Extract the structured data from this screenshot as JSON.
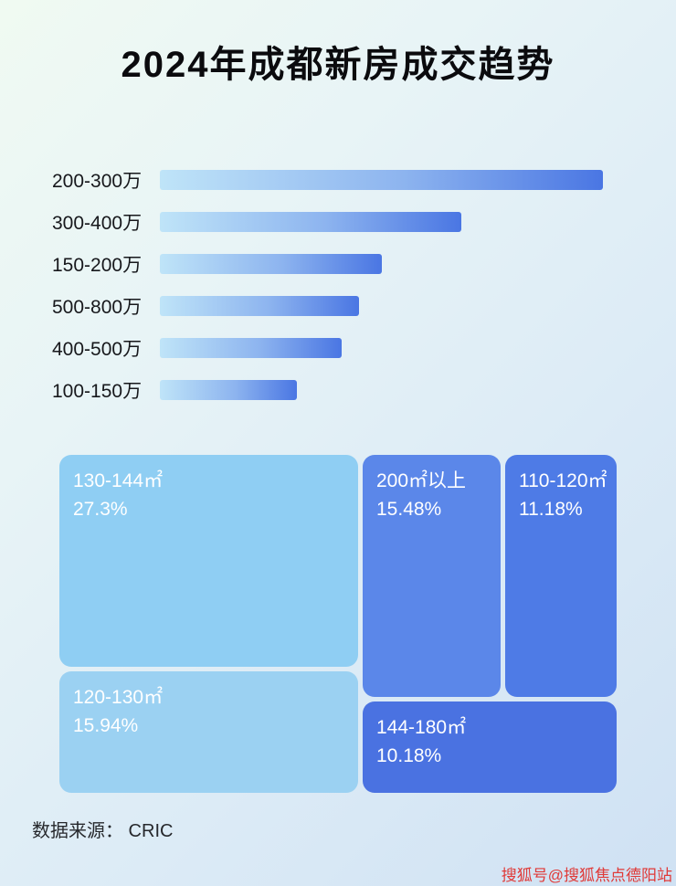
{
  "page": {
    "title": "2024年成都新房成交趋势",
    "source": "数据来源： CRIC",
    "watermark": "搜狐号@搜狐焦点德阳站"
  },
  "colors": {
    "bar_gradient_start": "#bfe4f8",
    "bar_gradient_end": "#4a76e3",
    "title_color": "#0b0b0e",
    "watermark_color": "#e03a38",
    "background_top": "#f0faf2",
    "background_bottom": "#cfe1f3"
  },
  "chart_data": [
    {
      "type": "bar",
      "orientation": "horizontal",
      "title": "2024年成都新房成交趋势",
      "categories": [
        "200-300万",
        "300-400万",
        "150-200万",
        "500-800万",
        "400-500万",
        "100-150万"
      ],
      "values": [
        100,
        68,
        50,
        45,
        41,
        31
      ],
      "value_unit": "relative bar length, % of longest bar (no numeric axis shown in image)",
      "xlabel": "",
      "ylabel": "",
      "grid": false,
      "legend": "none"
    },
    {
      "type": "treemap",
      "title": "",
      "items": [
        {
          "label": "130-144㎡",
          "value_pct": 27.3,
          "display": "27.3%",
          "color": "#8fcef3"
        },
        {
          "label": "200㎡以上",
          "value_pct": 15.48,
          "display": "15.48%",
          "color": "#5b87e9"
        },
        {
          "label": "110-120㎡",
          "value_pct": 11.18,
          "display": "11.18%",
          "color": "#4e7be6"
        },
        {
          "label": "120-130㎡",
          "value_pct": 15.94,
          "display": "15.94%",
          "color": "#9bd1f2"
        },
        {
          "label": "144-180㎡",
          "value_pct": 10.18,
          "display": "10.18%",
          "color": "#4a72e1"
        }
      ]
    }
  ]
}
